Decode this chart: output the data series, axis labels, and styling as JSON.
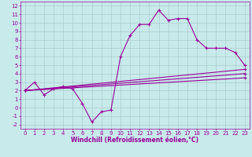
{
  "background_color": "#c8eaea",
  "grid_color": "#aacccc",
  "line_color": "#990099",
  "marker": "+",
  "markersize": 3,
  "linewidth": 0.8,
  "xlim": [
    -0.5,
    23.5
  ],
  "ylim": [
    -2.5,
    12.5
  ],
  "xlabel": "Windchill (Refroidissement éolien,°C)",
  "xlabel_fontsize": 5.5,
  "xticks": [
    0,
    1,
    2,
    3,
    4,
    5,
    6,
    7,
    8,
    9,
    10,
    11,
    12,
    13,
    14,
    15,
    16,
    17,
    18,
    19,
    20,
    21,
    22,
    23
  ],
  "yticks": [
    -2,
    -1,
    0,
    1,
    2,
    3,
    4,
    5,
    6,
    7,
    8,
    9,
    10,
    11,
    12
  ],
  "tick_fontsize": 5.0,
  "series1_x": [
    0,
    1,
    2,
    3,
    4,
    5,
    6,
    7,
    8,
    9,
    10,
    11,
    12,
    13,
    14,
    15,
    16,
    17,
    18,
    19,
    20,
    21,
    22,
    23
  ],
  "series1_y": [
    2.0,
    3.0,
    1.5,
    2.2,
    2.5,
    2.2,
    0.5,
    -1.7,
    -0.5,
    -0.3,
    6.0,
    8.5,
    9.8,
    9.8,
    11.5,
    10.3,
    10.5,
    10.5,
    8.0,
    7.0,
    7.0,
    7.0,
    6.5,
    5.0
  ],
  "series2_x": [
    0,
    23
  ],
  "series2_y": [
    2.0,
    4.5
  ],
  "series3_x": [
    0,
    23
  ],
  "series3_y": [
    2.0,
    4.0
  ],
  "series4_x": [
    0,
    23
  ],
  "series4_y": [
    2.0,
    3.5
  ],
  "spine_color": "#990099",
  "spine_linewidth": 0.5
}
